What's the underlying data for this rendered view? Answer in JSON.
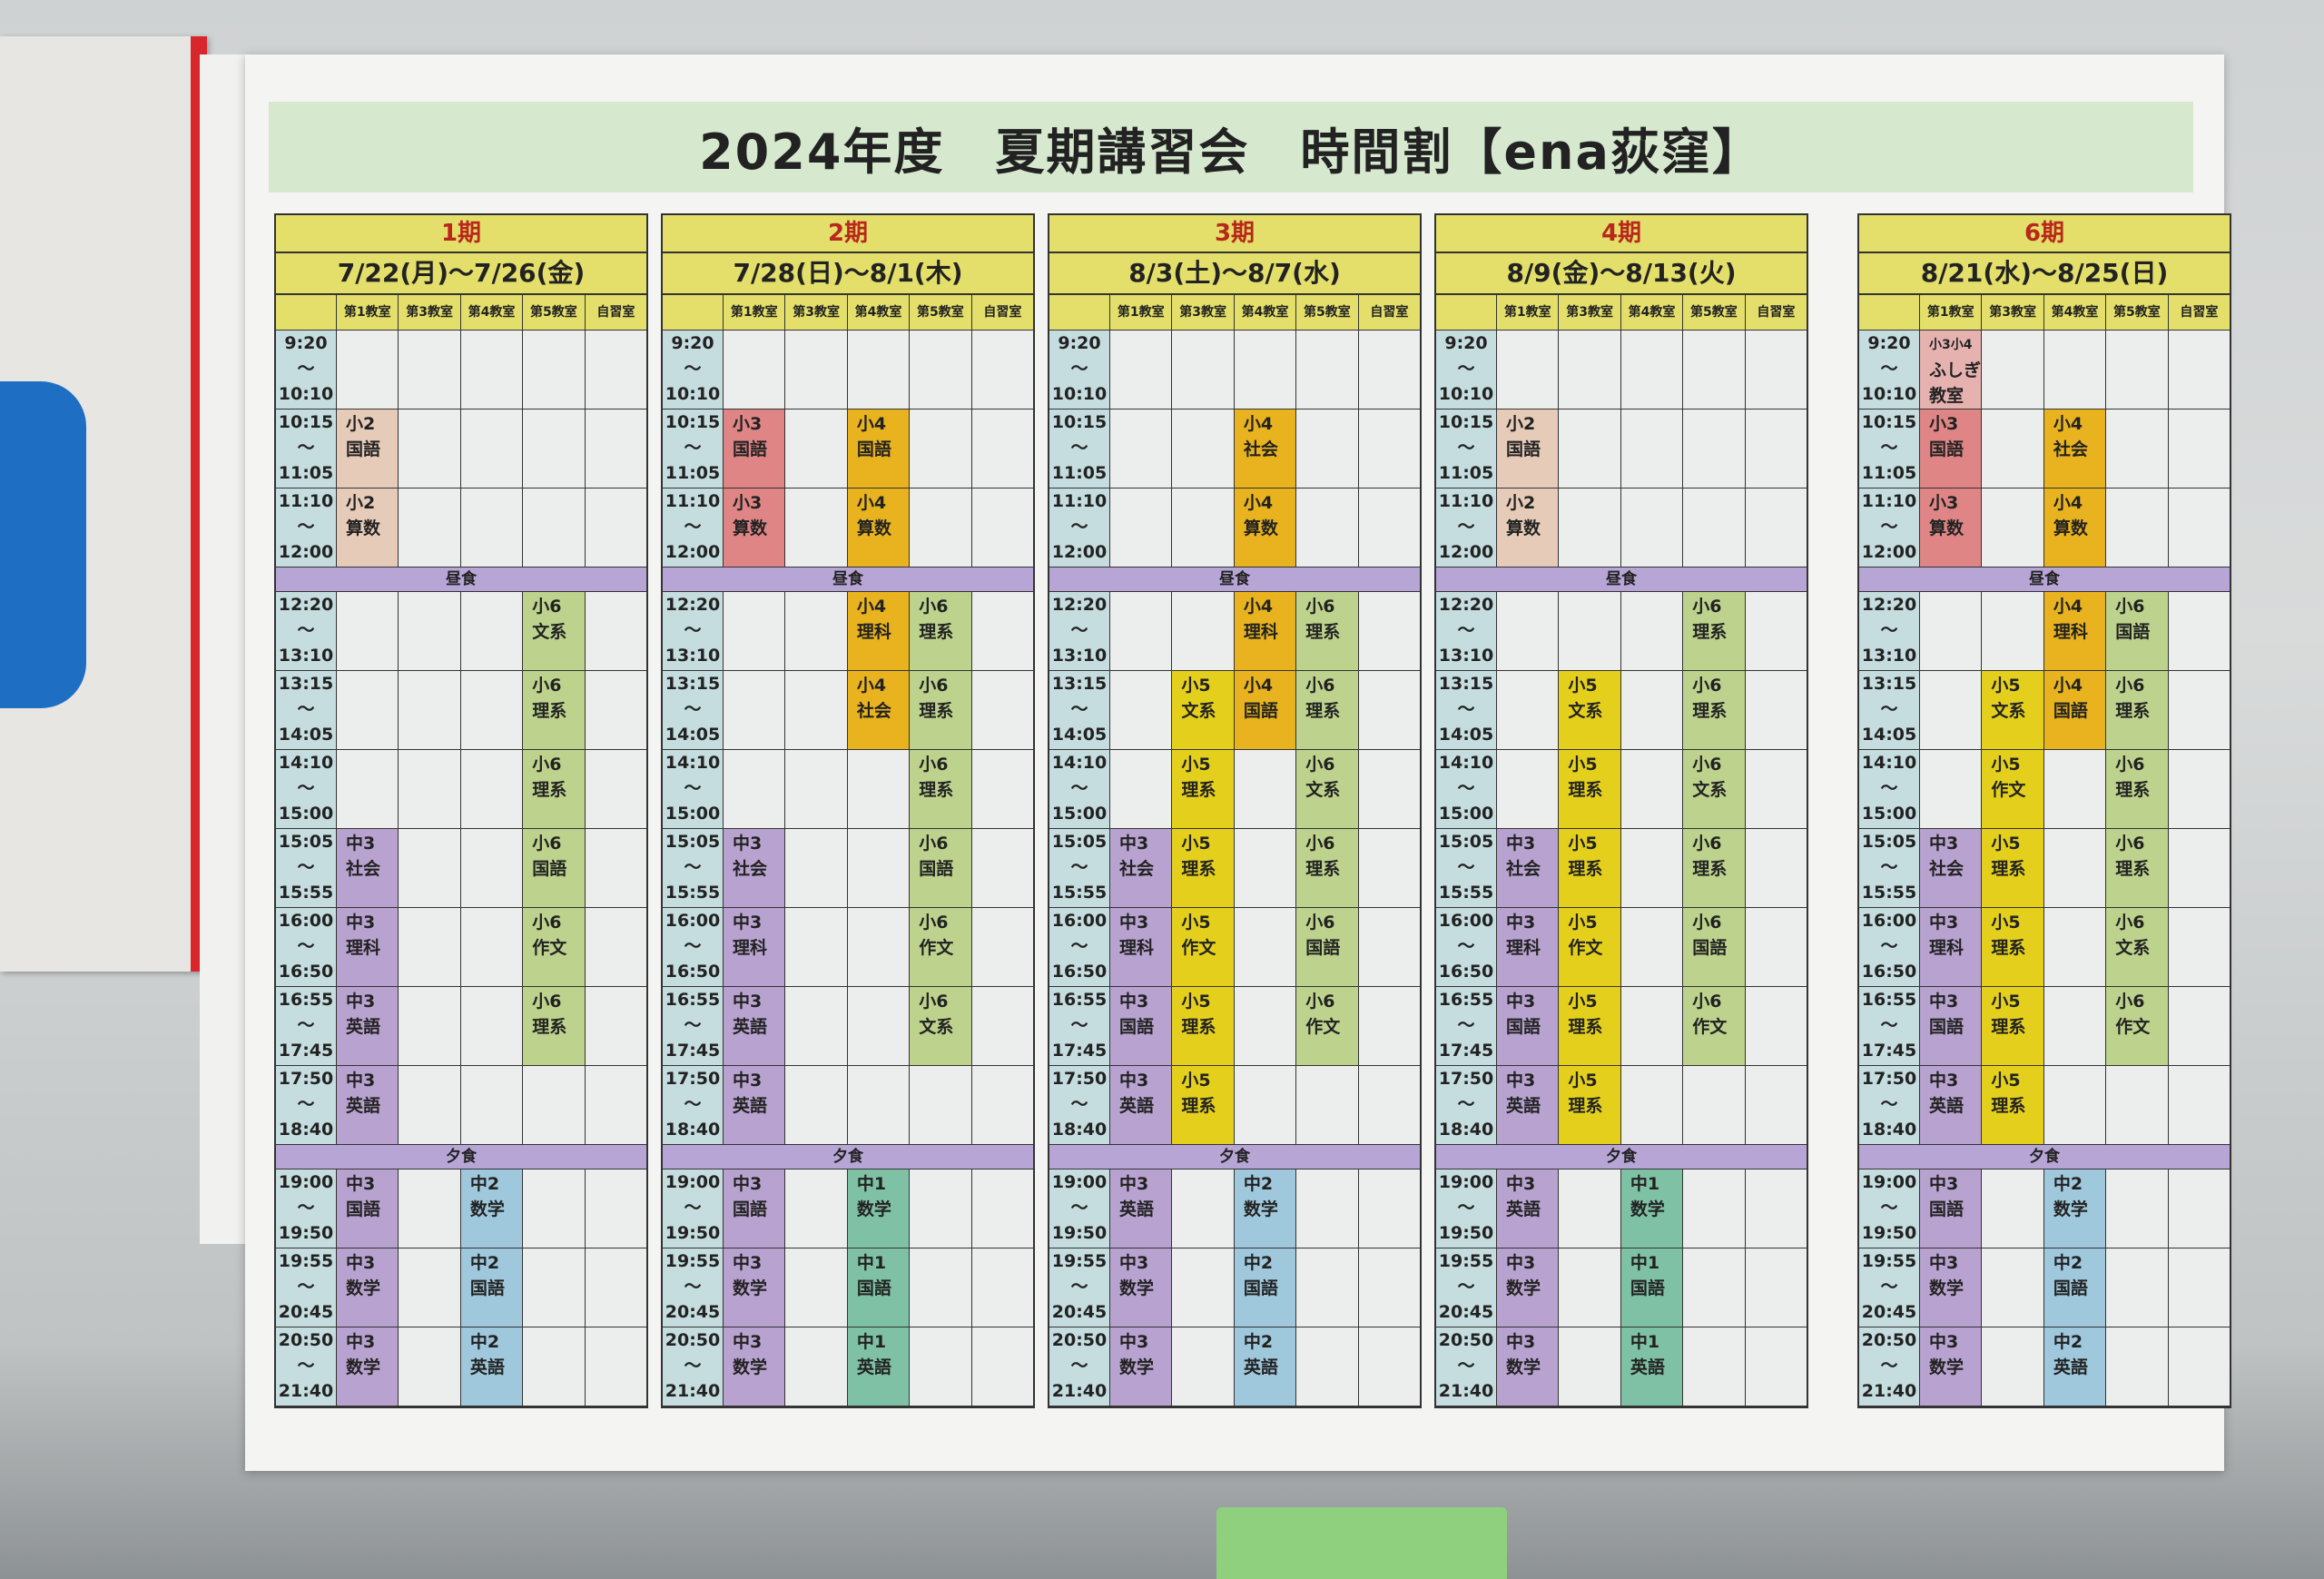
{
  "title": "2024年度　夏期講習会　時間割【ena荻窪】",
  "rooms": [
    "第1教室",
    "第3教室",
    "第4教室",
    "第5教室",
    "自習室"
  ],
  "breaks": {
    "lunch": "昼食",
    "dinner": "夕食"
  },
  "times": [
    [
      "9:20",
      "～",
      "10:10"
    ],
    [
      "10:15",
      "～",
      "11:05"
    ],
    [
      "11:10",
      "～",
      "12:00"
    ],
    [
      "12:20",
      "～",
      "13:10"
    ],
    [
      "13:15",
      "～",
      "14:05"
    ],
    [
      "14:10",
      "～",
      "15:00"
    ],
    [
      "15:05",
      "～",
      "15:55"
    ],
    [
      "16:00",
      "～",
      "16:50"
    ],
    [
      "16:55",
      "～",
      "17:45"
    ],
    [
      "17:50",
      "～",
      "18:40"
    ],
    [
      "19:00",
      "～",
      "19:50"
    ],
    [
      "19:55",
      "～",
      "20:45"
    ],
    [
      "20:50",
      "～",
      "21:40"
    ]
  ],
  "colors": {
    "小2": "#e6ccb8",
    "小3": "#df8585",
    "小3小4": "#e6b2b0",
    "小4": "#e8b31e",
    "小5": "#e4d01c",
    "小6": "#bdd28c",
    "中3": "#b8a2cf",
    "中2": "#9fc8dc",
    "中1": "#7fc1a5",
    "time": "#c6dddf",
    "header": "#e3df6a",
    "meal": "#b7a5d6",
    "period_name": "#b8281c"
  },
  "periods": [
    {
      "name": "1期",
      "dates": "7/22(月)～7/26(金)",
      "cells": [
        [
          null,
          null,
          null,
          null,
          null
        ],
        [
          [
            "小2",
            "国語"
          ],
          null,
          null,
          null,
          null
        ],
        [
          [
            "小2",
            "算数"
          ],
          null,
          null,
          null,
          null
        ],
        [
          null,
          null,
          null,
          [
            "小6",
            "文系"
          ],
          null
        ],
        [
          null,
          null,
          null,
          [
            "小6",
            "理系"
          ],
          null
        ],
        [
          null,
          null,
          null,
          [
            "小6",
            "理系"
          ],
          null
        ],
        [
          [
            "中3",
            "社会"
          ],
          null,
          null,
          [
            "小6",
            "国語"
          ],
          null
        ],
        [
          [
            "中3",
            "理科"
          ],
          null,
          null,
          [
            "小6",
            "作文"
          ],
          null
        ],
        [
          [
            "中3",
            "英語"
          ],
          null,
          null,
          [
            "小6",
            "理系"
          ],
          null
        ],
        [
          [
            "中3",
            "英語"
          ],
          null,
          null,
          null,
          null
        ],
        [
          [
            "中3",
            "国語"
          ],
          null,
          [
            "中2",
            "数学"
          ],
          null,
          null
        ],
        [
          [
            "中3",
            "数学"
          ],
          null,
          [
            "中2",
            "国語"
          ],
          null,
          null
        ],
        [
          [
            "中3",
            "数学"
          ],
          null,
          [
            "中2",
            "英語"
          ],
          null,
          null
        ]
      ]
    },
    {
      "name": "2期",
      "dates": "7/28(日)～8/1(木)",
      "cells": [
        [
          null,
          null,
          null,
          null,
          null
        ],
        [
          [
            "小3",
            "国語"
          ],
          null,
          [
            "小4",
            "国語"
          ],
          null,
          null
        ],
        [
          [
            "小3",
            "算数"
          ],
          null,
          [
            "小4",
            "算数"
          ],
          null,
          null
        ],
        [
          null,
          null,
          [
            "小4",
            "理科"
          ],
          [
            "小6",
            "理系"
          ],
          null
        ],
        [
          null,
          null,
          [
            "小4",
            "社会"
          ],
          [
            "小6",
            "理系"
          ],
          null
        ],
        [
          null,
          null,
          null,
          [
            "小6",
            "理系"
          ],
          null
        ],
        [
          [
            "中3",
            "社会"
          ],
          null,
          null,
          [
            "小6",
            "国語"
          ],
          null
        ],
        [
          [
            "中3",
            "理科"
          ],
          null,
          null,
          [
            "小6",
            "作文"
          ],
          null
        ],
        [
          [
            "中3",
            "英語"
          ],
          null,
          null,
          [
            "小6",
            "文系"
          ],
          null
        ],
        [
          [
            "中3",
            "英語"
          ],
          null,
          null,
          null,
          null
        ],
        [
          [
            "中3",
            "国語"
          ],
          null,
          [
            "中1",
            "数学"
          ],
          null,
          null
        ],
        [
          [
            "中3",
            "数学"
          ],
          null,
          [
            "中1",
            "国語"
          ],
          null,
          null
        ],
        [
          [
            "中3",
            "数学"
          ],
          null,
          [
            "中1",
            "英語"
          ],
          null,
          null
        ]
      ]
    },
    {
      "name": "3期",
      "dates": "8/3(土)～8/7(水)",
      "cells": [
        [
          null,
          null,
          null,
          null,
          null
        ],
        [
          null,
          null,
          [
            "小4",
            "社会"
          ],
          null,
          null
        ],
        [
          null,
          null,
          [
            "小4",
            "算数"
          ],
          null,
          null
        ],
        [
          null,
          null,
          [
            "小4",
            "理科"
          ],
          [
            "小6",
            "理系"
          ],
          null
        ],
        [
          null,
          [
            "小5",
            "文系"
          ],
          [
            "小4",
            "国語"
          ],
          [
            "小6",
            "理系"
          ],
          null
        ],
        [
          null,
          [
            "小5",
            "理系"
          ],
          null,
          [
            "小6",
            "文系"
          ],
          null
        ],
        [
          [
            "中3",
            "社会"
          ],
          [
            "小5",
            "理系"
          ],
          null,
          [
            "小6",
            "理系"
          ],
          null
        ],
        [
          [
            "中3",
            "理科"
          ],
          [
            "小5",
            "作文"
          ],
          null,
          [
            "小6",
            "国語"
          ],
          null
        ],
        [
          [
            "中3",
            "国語"
          ],
          [
            "小5",
            "理系"
          ],
          null,
          [
            "小6",
            "作文"
          ],
          null
        ],
        [
          [
            "中3",
            "英語"
          ],
          [
            "小5",
            "理系"
          ],
          null,
          null,
          null
        ],
        [
          [
            "中3",
            "英語"
          ],
          null,
          [
            "中2",
            "数学"
          ],
          null,
          null
        ],
        [
          [
            "中3",
            "数学"
          ],
          null,
          [
            "中2",
            "国語"
          ],
          null,
          null
        ],
        [
          [
            "中3",
            "数学"
          ],
          null,
          [
            "中2",
            "英語"
          ],
          null,
          null
        ]
      ]
    },
    {
      "name": "4期",
      "dates": "8/9(金)～8/13(火)",
      "cells": [
        [
          null,
          null,
          null,
          null,
          null
        ],
        [
          [
            "小2",
            "国語"
          ],
          null,
          null,
          null,
          null
        ],
        [
          [
            "小2",
            "算数"
          ],
          null,
          null,
          null,
          null
        ],
        [
          null,
          null,
          null,
          [
            "小6",
            "理系"
          ],
          null
        ],
        [
          null,
          [
            "小5",
            "文系"
          ],
          null,
          [
            "小6",
            "理系"
          ],
          null
        ],
        [
          null,
          [
            "小5",
            "理系"
          ],
          null,
          [
            "小6",
            "文系"
          ],
          null
        ],
        [
          [
            "中3",
            "社会"
          ],
          [
            "小5",
            "理系"
          ],
          null,
          [
            "小6",
            "理系"
          ],
          null
        ],
        [
          [
            "中3",
            "理科"
          ],
          [
            "小5",
            "作文"
          ],
          null,
          [
            "小6",
            "国語"
          ],
          null
        ],
        [
          [
            "中3",
            "国語"
          ],
          [
            "小5",
            "理系"
          ],
          null,
          [
            "小6",
            "作文"
          ],
          null
        ],
        [
          [
            "中3",
            "英語"
          ],
          [
            "小5",
            "理系"
          ],
          null,
          null,
          null
        ],
        [
          [
            "中3",
            "英語"
          ],
          null,
          [
            "中1",
            "数学"
          ],
          null,
          null
        ],
        [
          [
            "中3",
            "数学"
          ],
          null,
          [
            "中1",
            "国語"
          ],
          null,
          null
        ],
        [
          [
            "中3",
            "数学"
          ],
          null,
          [
            "中1",
            "英語"
          ],
          null,
          null
        ]
      ]
    },
    {
      "name": "6期",
      "dates": "8/21(水)～8/25(日)",
      "cells": [
        [
          [
            "小3小4",
            "ふしぎ",
            "教室"
          ],
          null,
          null,
          null,
          null
        ],
        [
          [
            "小3",
            "国語"
          ],
          null,
          [
            "小4",
            "社会"
          ],
          null,
          null
        ],
        [
          [
            "小3",
            "算数"
          ],
          null,
          [
            "小4",
            "算数"
          ],
          null,
          null
        ],
        [
          null,
          null,
          [
            "小4",
            "理科"
          ],
          [
            "小6",
            "国語"
          ],
          null
        ],
        [
          null,
          [
            "小5",
            "文系"
          ],
          [
            "小4",
            "国語"
          ],
          [
            "小6",
            "理系"
          ],
          null
        ],
        [
          null,
          [
            "小5",
            "作文"
          ],
          null,
          [
            "小6",
            "理系"
          ],
          null
        ],
        [
          [
            "中3",
            "社会"
          ],
          [
            "小5",
            "理系"
          ],
          null,
          [
            "小6",
            "理系"
          ],
          null
        ],
        [
          [
            "中3",
            "理科"
          ],
          [
            "小5",
            "理系"
          ],
          null,
          [
            "小6",
            "文系"
          ],
          null
        ],
        [
          [
            "中3",
            "国語"
          ],
          [
            "小5",
            "理系"
          ],
          null,
          [
            "小6",
            "作文"
          ],
          null
        ],
        [
          [
            "中3",
            "英語"
          ],
          [
            "小5",
            "理系"
          ],
          null,
          null,
          null
        ],
        [
          [
            "中3",
            "国語"
          ],
          null,
          [
            "中2",
            "数学"
          ],
          null,
          null
        ],
        [
          [
            "中3",
            "数学"
          ],
          null,
          [
            "中2",
            "国語"
          ],
          null,
          null
        ],
        [
          [
            "中3",
            "数学"
          ],
          null,
          [
            "中2",
            "英語"
          ],
          null,
          null
        ]
      ]
    }
  ]
}
